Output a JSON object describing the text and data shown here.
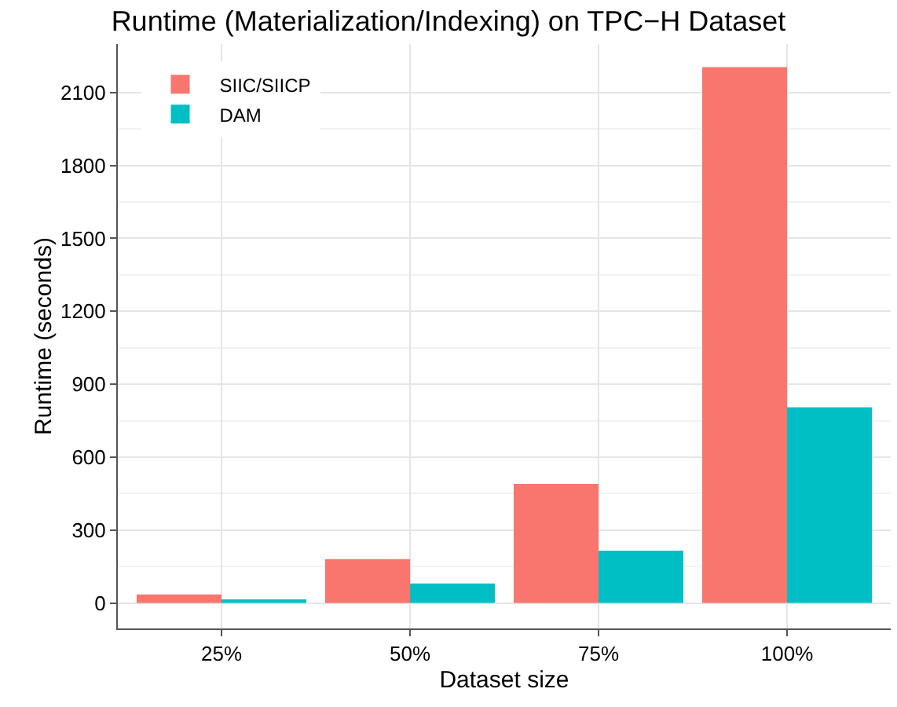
{
  "chart_data": {
    "type": "bar",
    "title": "Runtime (Materialization/Indexing) on TPC−H Dataset",
    "xlabel": "Dataset size",
    "ylabel": "Runtime (seconds)",
    "categories": [
      "25%",
      "50%",
      "75%",
      "100%"
    ],
    "series": [
      {
        "name": "SIIC/SIICP",
        "color": "#f8766d",
        "values": [
          35,
          180,
          490,
          2205
        ]
      },
      {
        "name": "DAM",
        "color": "#00bfc4",
        "values": [
          15,
          80,
          215,
          805
        ]
      }
    ],
    "ylim": [
      -105,
      2300
    ],
    "yticks": [
      0,
      300,
      600,
      900,
      1200,
      1500,
      1800,
      2100
    ],
    "grid": true,
    "legend": "top left"
  }
}
